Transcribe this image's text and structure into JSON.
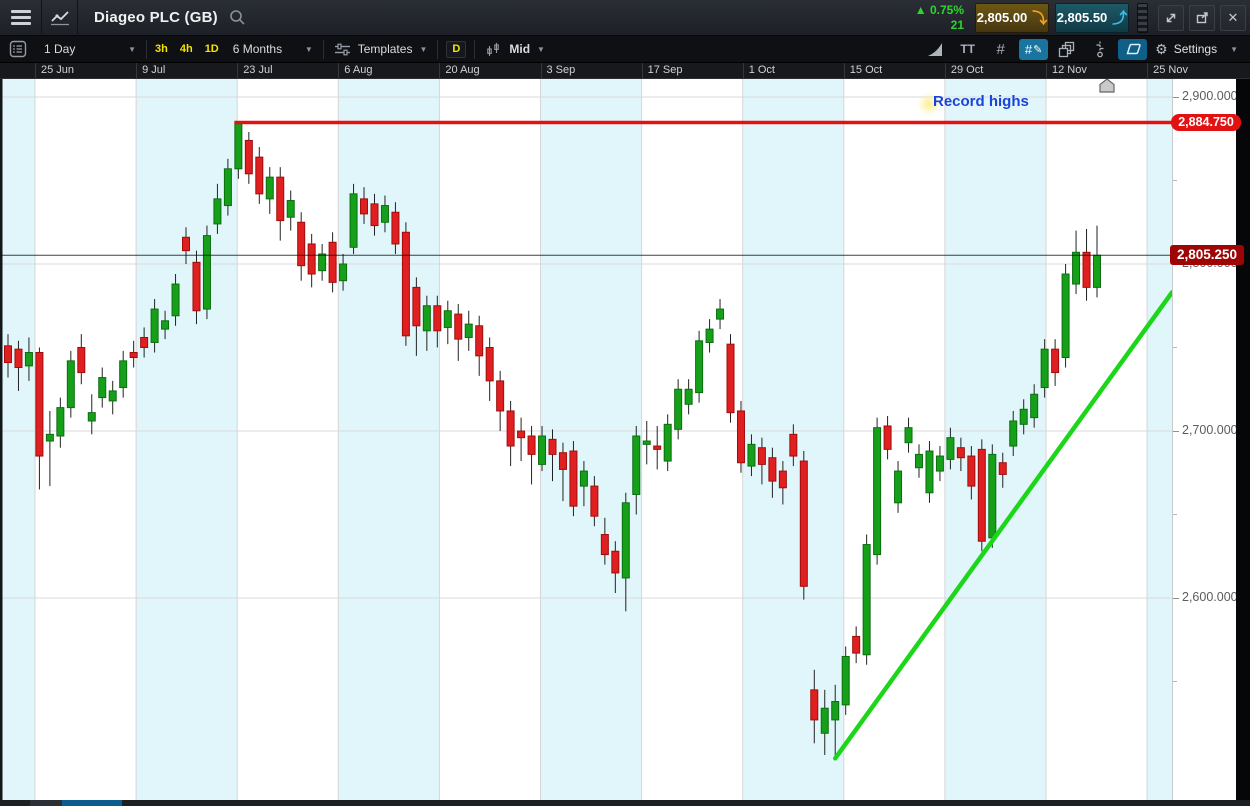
{
  "topbar": {
    "title": "Diageo PLC (GB)"
  },
  "quote": {
    "change_pct": "▲ 0.75%",
    "change_pts": "21",
    "sell_price": "2,805.00",
    "buy_price": "2,805.50"
  },
  "toolbar": {
    "period": "1 Day",
    "quick_periods": [
      "3h",
      "4h",
      "1D"
    ],
    "range": "6 Months",
    "templates_label": "Templates",
    "interval_badge": "D",
    "price_basis": "Mid",
    "settings_label": "Settings"
  },
  "icons": {
    "caret": "▼",
    "close": "✕",
    "sell_arrow": "⤵",
    "buy_arrow": "⤴",
    "gear": "⚙",
    "text_tool": "TT",
    "grid_tool": "#",
    "draw_hash": "#",
    "pencil": "✎"
  },
  "chart_data": {
    "type": "candlestick",
    "title": "Diageo PLC (GB) daily candles, 6 months",
    "x_tick_labels": [
      "25 Jun",
      "9 Jul",
      "23 Jul",
      "6 Aug",
      "20 Aug",
      "3 Sep",
      "17 Sep",
      "1 Oct",
      "15 Oct",
      "29 Oct",
      "12 Nov",
      "25 Nov"
    ],
    "y_ticks": [
      {
        "value": 2900,
        "label": "2,900.000"
      },
      {
        "value": 2800,
        "label": "2,800.000"
      },
      {
        "value": 2700,
        "label": "2,700.000"
      },
      {
        "value": 2600,
        "label": "2,600.000"
      }
    ],
    "y_minor_values": [
      2850,
      2750,
      2650,
      2550
    ],
    "ylim": [
      2470,
      2915
    ],
    "grid": true,
    "current_price": {
      "value": 2805.25,
      "label": "2,805.250"
    },
    "resistance_line": {
      "value": 2884.75,
      "label": "2,884.750"
    },
    "trend_line": {
      "start_index": 79,
      "start_price": 2504,
      "end_price": 2783
    },
    "annotation": {
      "text": "Record highs"
    },
    "event_marker": {
      "x": 1107
    },
    "colors": {
      "band": "#e0f6fa",
      "grid": "#d9d9d9",
      "up_fill": "#16a019",
      "up_stroke": "#0b6e10",
      "down_fill": "#e02020",
      "down_stroke": "#a00d0d",
      "wick": "#222222",
      "resistance": "#e31212",
      "trend": "#1bd619",
      "price_line": "#111111"
    },
    "candles": [
      [
        2751,
        2758,
        2732,
        2741
      ],
      [
        2749,
        2754,
        2724,
        2738
      ],
      [
        2739,
        2756,
        2730,
        2747
      ],
      [
        2747,
        2750,
        2665,
        2685
      ],
      [
        2694,
        2712,
        2667,
        2698
      ],
      [
        2697,
        2720,
        2690,
        2714
      ],
      [
        2714,
        2748,
        2708,
        2742
      ],
      [
        2750,
        2758,
        2728,
        2735
      ],
      [
        2706,
        2722,
        2698,
        2711
      ],
      [
        2720,
        2738,
        2714,
        2732
      ],
      [
        2718,
        2730,
        2710,
        2724
      ],
      [
        2726,
        2748,
        2720,
        2742
      ],
      [
        2747,
        2754,
        2738,
        2744
      ],
      [
        2756,
        2762,
        2744,
        2750
      ],
      [
        2753,
        2779,
        2747,
        2773
      ],
      [
        2761,
        2772,
        2755,
        2766
      ],
      [
        2769,
        2794,
        2763,
        2788
      ],
      [
        2816,
        2822,
        2800,
        2808
      ],
      [
        2801,
        2808,
        2764,
        2772
      ],
      [
        2773,
        2823,
        2767,
        2817
      ],
      [
        2824,
        2848,
        2818,
        2839
      ],
      [
        2835,
        2863,
        2829,
        2857
      ],
      [
        2857,
        2884.75,
        2851,
        2884
      ],
      [
        2874,
        2879,
        2848,
        2854
      ],
      [
        2864,
        2870,
        2836,
        2842
      ],
      [
        2839,
        2858,
        2830,
        2852
      ],
      [
        2852,
        2858,
        2814,
        2826
      ],
      [
        2828,
        2844,
        2820,
        2838
      ],
      [
        2825,
        2831,
        2790,
        2799
      ],
      [
        2812,
        2818,
        2786,
        2794
      ],
      [
        2796,
        2812,
        2790,
        2806
      ],
      [
        2813,
        2819,
        2783,
        2789
      ],
      [
        2790,
        2806,
        2784,
        2800
      ],
      [
        2810,
        2848,
        2806,
        2842
      ],
      [
        2839,
        2846,
        2824,
        2830
      ],
      [
        2836,
        2842,
        2817,
        2823
      ],
      [
        2825,
        2841,
        2819,
        2835
      ],
      [
        2831,
        2837,
        2806,
        2812
      ],
      [
        2819,
        2825,
        2751,
        2757
      ],
      [
        2786,
        2792,
        2745,
        2763
      ],
      [
        2760,
        2781,
        2748,
        2775
      ],
      [
        2775,
        2781,
        2750,
        2760
      ],
      [
        2762,
        2778,
        2752,
        2772
      ],
      [
        2770,
        2776,
        2742,
        2755
      ],
      [
        2756,
        2772,
        2748,
        2764
      ],
      [
        2763,
        2769,
        2733,
        2745
      ],
      [
        2750,
        2756,
        2718,
        2730
      ],
      [
        2730,
        2736,
        2700,
        2712
      ],
      [
        2712,
        2718,
        2679,
        2691
      ],
      [
        2700,
        2708,
        2682,
        2696
      ],
      [
        2697,
        2703,
        2668,
        2686
      ],
      [
        2680,
        2703,
        2676,
        2697
      ],
      [
        2695,
        2701,
        2670,
        2686
      ],
      [
        2687,
        2693,
        2658,
        2677
      ],
      [
        2688,
        2694,
        2649,
        2655
      ],
      [
        2667,
        2682,
        2655,
        2676
      ],
      [
        2667,
        2673,
        2643,
        2649
      ],
      [
        2638,
        2648,
        2620,
        2626
      ],
      [
        2628,
        2634,
        2603,
        2615
      ],
      [
        2612,
        2663,
        2592,
        2657
      ],
      [
        2662,
        2703,
        2650,
        2697
      ],
      [
        2692,
        2706,
        2680,
        2694
      ],
      [
        2691,
        2703,
        2677,
        2689
      ],
      [
        2682,
        2710,
        2676,
        2704
      ],
      [
        2701,
        2731,
        2695,
        2725
      ],
      [
        2716,
        2731,
        2710,
        2725
      ],
      [
        2723,
        2760,
        2717,
        2754
      ],
      [
        2753,
        2767,
        2747,
        2761
      ],
      [
        2767,
        2779,
        2761,
        2773
      ],
      [
        2752,
        2758,
        2705,
        2711
      ],
      [
        2712,
        2718,
        2675,
        2681
      ],
      [
        2679,
        2698,
        2673,
        2692
      ],
      [
        2690,
        2696,
        2668,
        2680
      ],
      [
        2684,
        2690,
        2660,
        2670
      ],
      [
        2676,
        2682,
        2656,
        2666
      ],
      [
        2698,
        2704,
        2679,
        2685
      ],
      [
        2682,
        2688,
        2599,
        2607
      ],
      [
        2545,
        2557,
        2513,
        2527
      ],
      [
        2519,
        2545,
        2506,
        2534
      ],
      [
        2527,
        2548,
        2504,
        2538
      ],
      [
        2536,
        2571,
        2530,
        2565
      ],
      [
        2577,
        2583,
        2561,
        2567
      ],
      [
        2566,
        2638,
        2560,
        2632
      ],
      [
        2626,
        2708,
        2620,
        2702
      ],
      [
        2703,
        2709,
        2683,
        2689
      ],
      [
        2657,
        2682,
        2651,
        2676
      ],
      [
        2693,
        2708,
        2687,
        2702
      ],
      [
        2678,
        2692,
        2672,
        2686
      ],
      [
        2663,
        2694,
        2657,
        2688
      ],
      [
        2676,
        2691,
        2670,
        2685
      ],
      [
        2683,
        2702,
        2677,
        2696
      ],
      [
        2690,
        2696,
        2676,
        2684
      ],
      [
        2685,
        2691,
        2659,
        2667
      ],
      [
        2689,
        2695,
        2628,
        2634
      ],
      [
        2636,
        2692,
        2630,
        2686
      ],
      [
        2681,
        2687,
        2666,
        2674
      ],
      [
        2691,
        2712,
        2685,
        2706
      ],
      [
        2704,
        2719,
        2698,
        2713
      ],
      [
        2708,
        2728,
        2702,
        2722
      ],
      [
        2726,
        2755,
        2720,
        2749
      ],
      [
        2749,
        2755,
        2727,
        2735
      ],
      [
        2744,
        2800,
        2738,
        2794
      ],
      [
        2788,
        2820,
        2782,
        2807
      ],
      [
        2807,
        2821,
        2778,
        2786
      ],
      [
        2786,
        2823,
        2780,
        2805.25
      ]
    ]
  }
}
